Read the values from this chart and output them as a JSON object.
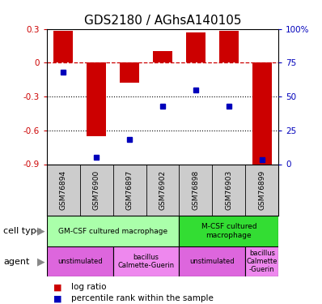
{
  "title": "GDS2180 / AGhsA140105",
  "samples": [
    "GSM76894",
    "GSM76900",
    "GSM76897",
    "GSM76902",
    "GSM76898",
    "GSM76903",
    "GSM76899"
  ],
  "log_ratio": [
    0.28,
    -0.65,
    -0.18,
    0.1,
    0.27,
    0.28,
    -0.9
  ],
  "percentile_pct": [
    68,
    5,
    18,
    43,
    55,
    43,
    3
  ],
  "ylim_left": [
    -0.9,
    0.3
  ],
  "ylim_right": [
    0,
    100
  ],
  "left_ticks": [
    0.3,
    0,
    -0.3,
    -0.6,
    -0.9
  ],
  "right_ticks": [
    100,
    75,
    50,
    25,
    0
  ],
  "cell_type_groups": [
    {
      "label": "GM-CSF cultured macrophage",
      "span": [
        0,
        4
      ],
      "color": "#aaffaa"
    },
    {
      "label": "M-CSF cultured\nmacrophage",
      "span": [
        4,
        7
      ],
      "color": "#33dd33"
    }
  ],
  "agent_groups": [
    {
      "label": "unstimulated",
      "span": [
        0,
        2
      ],
      "color": "#dd66dd"
    },
    {
      "label": "bacillus\nCalmette-Guerin",
      "span": [
        2,
        4
      ],
      "color": "#ee88ee"
    },
    {
      "label": "unstimulated",
      "span": [
        4,
        6
      ],
      "color": "#dd66dd"
    },
    {
      "label": "bacillus\nCalmette\n-Guerin",
      "span": [
        6,
        7
      ],
      "color": "#ee88ee"
    }
  ],
  "bar_color": "#cc0000",
  "dot_color": "#0000bb",
  "ref_line_color": "#cc0000",
  "grid_color": "#000000",
  "bg_color": "#ffffff",
  "gsm_bg_color": "#cccccc",
  "title_fontsize": 11,
  "tick_fontsize": 7.5,
  "label_fontsize": 8
}
